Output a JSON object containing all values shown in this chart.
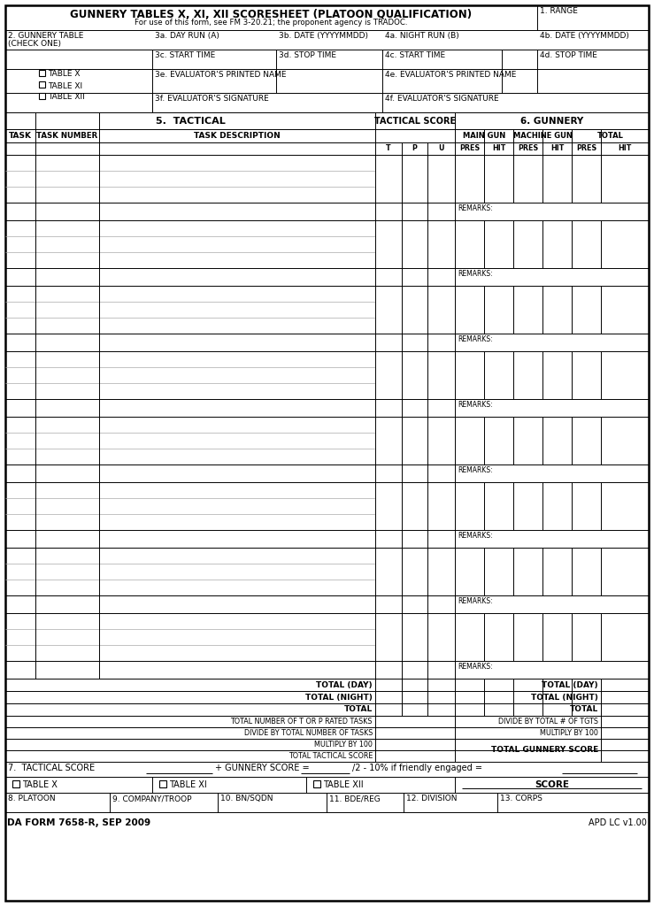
{
  "title_main": "GUNNERY TABLES X, XI, XII SCORESHEET (PLATOON QUALIFICATION)",
  "title_sub": "For use of this form, see FM 3-20.21; the proponent agency is TRADOC.",
  "field1": "1. RANGE",
  "field2_line1": "2. GUNNERY TABLE",
  "field2_line2": "(CHECK ONE)",
  "field3a": "3a. DAY RUN (A)",
  "field3b": "3b. DATE (YYYYMMDD)",
  "field4a": "4a. NIGHT RUN (B)",
  "field4b": "4b. DATE (YYYYMMDD)",
  "field3c": "3c. START TIME",
  "field3d": "3d. STOP TIME",
  "field4c": "4c. START TIME",
  "field4d": "4d. STOP TIME",
  "field3e": "3e. EVALUATOR'S PRINTED NAME",
  "field4e": "4e. EVALUATOR'S PRINTED NAME",
  "field3f": "3f. EVALUATOR'S SIGNATURE",
  "field4f": "4f. EVALUATOR'S SIGNATURE",
  "check_items": [
    "TABLE X",
    "TABLE XI",
    "TABLE XII"
  ],
  "section5": "5.  TACTICAL",
  "tactical_score": "TACTICAL SCORE",
  "section6": "6. GUNNERY",
  "col_task": "TASK",
  "col_task_number": "TASK NUMBER",
  "col_task_desc": "TASK DESCRIPTION",
  "col_t": "T",
  "col_p": "P",
  "col_u": "U",
  "main_gun": "MAIN GUN",
  "machine_gun": "MACHINE GUN",
  "total_gun": "TOTAL",
  "pres": "PRES",
  "hit": "HIT",
  "remarks": "REMARKS:",
  "total_day": "TOTAL (DAY)",
  "total_night": "TOTAL (NIGHT)",
  "total": "TOTAL",
  "total_t_or_p": "TOTAL NUMBER OF T OR P RATED TASKS",
  "divide_total": "DIVIDE BY TOTAL NUMBER OF TASKS",
  "multiply_100": "MULTIPLY BY 100",
  "total_tactical_score": "TOTAL TACTICAL SCORE",
  "divide_total_tgts": "DIVIDE BY TOTAL # OF TGTS",
  "multiply_100b": "MULTIPLY BY 100",
  "total_gunnery_score": "TOTAL GUNNERY SCORE",
  "section7": "7.  TACTICAL SCORE",
  "plus_gunnery": "+ GUNNERY SCORE =",
  "friendly": "/2 - 10% if friendly engaged =",
  "score_label": "SCORE",
  "field8": "8. PLATOON",
  "field9": "9. COMPANY/TROOP",
  "field10": "10. BN/SQDN",
  "field11": "11. BDE/REG",
  "field12": "12. DIVISION",
  "field13": "13. CORPS",
  "footer_left": "DA FORM 7658-R, SEP 2009",
  "footer_right": "APD LC v1.00",
  "bg_color": "#ffffff"
}
